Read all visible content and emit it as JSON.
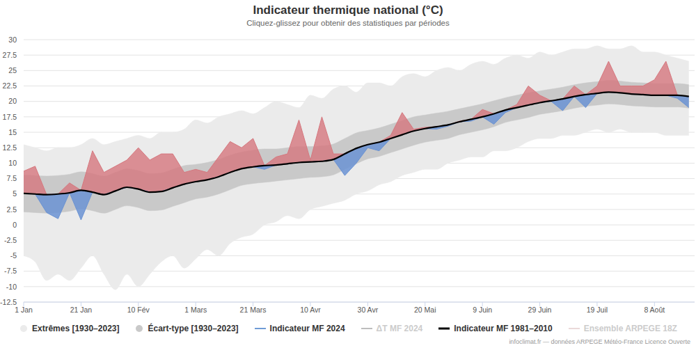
{
  "chart_data": {
    "type": "line",
    "title": "Indicateur thermique national (°C)",
    "subtitle": "Cliquez-glissez pour obtenir des statistiques par périodes",
    "source": "infoclimat.fr — données ARPEGE Météo-France Licence Ouverte",
    "x": [
      0,
      4,
      8,
      12,
      16,
      20,
      24,
      28,
      32,
      36,
      40,
      44,
      48,
      52,
      56,
      60,
      64,
      68,
      72,
      76,
      80,
      84,
      88,
      92,
      96,
      100,
      104,
      108,
      112,
      116,
      120,
      124,
      128,
      132,
      136,
      140,
      144,
      148,
      152,
      156,
      160,
      164,
      168,
      172,
      176,
      180,
      184,
      188,
      192,
      196,
      200,
      204,
      208,
      212,
      216,
      220,
      224,
      228,
      232
    ],
    "xlim": [
      0,
      234
    ],
    "xticks": [
      {
        "value": 0,
        "label": "1 Jan"
      },
      {
        "value": 20,
        "label": "21 Jan"
      },
      {
        "value": 40,
        "label": "10 Fév"
      },
      {
        "value": 60,
        "label": "1 Mars"
      },
      {
        "value": 80,
        "label": "21 Mars"
      },
      {
        "value": 100,
        "label": "10 Avr"
      },
      {
        "value": 120,
        "label": "30 Avr"
      },
      {
        "value": 140,
        "label": "20 Mai"
      },
      {
        "value": 160,
        "label": "9 Juin"
      },
      {
        "value": 180,
        "label": "29 Juin"
      },
      {
        "value": 200,
        "label": "19 Juil"
      },
      {
        "value": 220,
        "label": "8 Août"
      }
    ],
    "ylim": [
      -12.5,
      30
    ],
    "yticks": [
      -12.5,
      -10,
      -7.5,
      -5,
      -2.5,
      0,
      2.5,
      5,
      7.5,
      10,
      12.5,
      15,
      17.5,
      20,
      22.5,
      25,
      27.5,
      30
    ],
    "grid": true,
    "legend": "bottom",
    "series": [
      {
        "name": "Extrêmes [1930–2023]",
        "type": "range",
        "color": "#ebebeb",
        "low": [
          -5,
          -6,
          -9,
          -8,
          -9,
          -7,
          -5,
          -8,
          -10.5,
          -8,
          -10,
          -8,
          -6,
          -5,
          -7,
          -5.5,
          -4,
          -5,
          -3,
          -2,
          -1.5,
          0,
          0.5,
          1.5,
          1,
          2.5,
          3,
          3.5,
          4,
          5,
          5.5,
          6.5,
          7,
          8,
          8.5,
          9,
          9,
          10,
          10.5,
          11,
          11,
          12,
          12,
          12.5,
          13.5,
          14,
          14,
          14.5,
          14.5,
          15,
          15.5,
          15,
          15.5,
          15,
          15,
          15,
          14.5,
          14.5,
          14.5
        ],
        "high": [
          13,
          12.5,
          12,
          12.5,
          12.5,
          13,
          14,
          13,
          13.5,
          14,
          14.5,
          14,
          15,
          15,
          15.5,
          17,
          16.5,
          17.5,
          18,
          18.5,
          18,
          19,
          20,
          19.5,
          19,
          21,
          20.5,
          22,
          22.5,
          21.5,
          23,
          23,
          22.5,
          24,
          24.5,
          24,
          25,
          25.5,
          25,
          26,
          26.5,
          26,
          27,
          27.5,
          27,
          28,
          27.5,
          28,
          28.5,
          28.5,
          29,
          28.5,
          28.5,
          29,
          28,
          28,
          27.5,
          27,
          26.5
        ]
      },
      {
        "name": "Écart-type [1930–2023]",
        "type": "range",
        "color": "#c9c9c9",
        "low": [
          2.1,
          2.0,
          1.9,
          2.0,
          2.2,
          2.6,
          2.3,
          1.9,
          2.5,
          3.1,
          2.8,
          2.3,
          2.4,
          3.0,
          3.6,
          4.2,
          4.5,
          5.0,
          5.7,
          6.4,
          6.7,
          6.9,
          7.1,
          7.3,
          7.5,
          7.7,
          7.8,
          8.1,
          9.0,
          9.9,
          10.7,
          11.1,
          11.7,
          12.3,
          12.9,
          13.4,
          13.7,
          14.0,
          14.6,
          15.0,
          15.4,
          15.9,
          16.6,
          17.0,
          17.4,
          17.9,
          18.2,
          18.5,
          18.9,
          19.2,
          19.4,
          19.6,
          19.5,
          19.3,
          19.2,
          19.1,
          19.1,
          19.1,
          18.9
        ],
        "high": [
          8.1,
          8.0,
          7.9,
          8.0,
          8.2,
          8.6,
          8.3,
          7.9,
          8.5,
          9.1,
          8.8,
          8.3,
          8.4,
          9.0,
          9.6,
          9.8,
          10.1,
          10.6,
          11.3,
          11.8,
          12.1,
          12.3,
          12.3,
          12.5,
          12.7,
          12.7,
          12.8,
          13.1,
          14.0,
          14.9,
          15.3,
          15.7,
          16.3,
          16.9,
          17.5,
          17.8,
          18.1,
          18.4,
          18.8,
          19.2,
          19.6,
          20.1,
          20.6,
          21.0,
          21.4,
          21.7,
          22.0,
          22.3,
          22.7,
          23.0,
          23.2,
          23.4,
          23.3,
          23.1,
          23.0,
          22.9,
          22.9,
          22.9,
          22.7
        ]
      },
      {
        "name": "Indicateur MF 2024",
        "type": "anomaly",
        "color": "#6f9bd6",
        "colors": [
          "#d6777e",
          "#6b93d3"
        ],
        "values": [
          8.7,
          9.5,
          2.0,
          1.0,
          6.8,
          0.8,
          12.0,
          8.5,
          9.5,
          10.5,
          12.5,
          10.5,
          11.5,
          11.5,
          8.5,
          9.0,
          8.5,
          11.0,
          13.5,
          12.5,
          14.0,
          9.0,
          11.0,
          11.5,
          17.0,
          10.5,
          17.5,
          11.5,
          8.0,
          10.0,
          12.5,
          12.0,
          14.5,
          18.2,
          15.5,
          15.8,
          15.5,
          16.0,
          16.8,
          16.8,
          18.7,
          16.3,
          18.2,
          19.5,
          22.5,
          21.0,
          20.0,
          18.5,
          22.5,
          19.0,
          22.5,
          26.5,
          22.5,
          22.5,
          22.5,
          23.5,
          26.5,
          20.5,
          19.0
        ]
      },
      {
        "name": "ΔT MF 2024",
        "type": "line",
        "color": "#bdbdbd",
        "values": [
          null,
          null,
          null,
          null,
          null,
          null,
          null,
          null,
          null,
          null,
          null,
          null,
          null,
          null,
          null,
          null,
          null,
          null,
          null,
          null,
          null,
          null,
          null,
          null,
          null,
          null,
          null,
          null,
          null,
          null,
          null,
          null,
          null,
          null,
          null,
          null,
          null,
          null,
          null,
          null,
          null,
          null,
          null,
          null,
          null,
          null,
          null,
          null,
          null,
          null,
          null,
          null,
          null,
          null,
          null,
          null,
          null,
          null,
          null
        ]
      },
      {
        "name": "Indicateur MF 1981–2010",
        "type": "line",
        "color": "#000000",
        "values": [
          5.1,
          5.0,
          4.9,
          5.0,
          5.2,
          5.6,
          5.3,
          4.9,
          5.5,
          6.1,
          5.8,
          5.3,
          5.4,
          6.0,
          6.6,
          7.0,
          7.3,
          7.8,
          8.5,
          9.1,
          9.4,
          9.6,
          9.7,
          9.9,
          10.1,
          10.2,
          10.3,
          10.6,
          11.5,
          12.4,
          13.0,
          13.4,
          14.0,
          14.6,
          15.2,
          15.6,
          15.9,
          16.2,
          16.7,
          17.1,
          17.5,
          18.0,
          18.6,
          19.0,
          19.4,
          19.8,
          20.1,
          20.4,
          20.8,
          21.1,
          21.3,
          21.5,
          21.4,
          21.2,
          21.1,
          21.0,
          21.0,
          21.0,
          20.8
        ]
      },
      {
        "name": "Ensemble ARPEGE 18Z",
        "type": "line",
        "color": "#ead9d9",
        "values": [
          null,
          null,
          null,
          null,
          null,
          null,
          null,
          null,
          null,
          null,
          null,
          null,
          null,
          null,
          null,
          null,
          null,
          null,
          null,
          null,
          null,
          null,
          null,
          null,
          null,
          null,
          null,
          null,
          null,
          null,
          null,
          null,
          null,
          null,
          null,
          null,
          null,
          null,
          null,
          null,
          null,
          null,
          null,
          null,
          null,
          null,
          null,
          null,
          null,
          null,
          null,
          null,
          null,
          null,
          null,
          null,
          null,
          null,
          null
        ]
      }
    ]
  }
}
